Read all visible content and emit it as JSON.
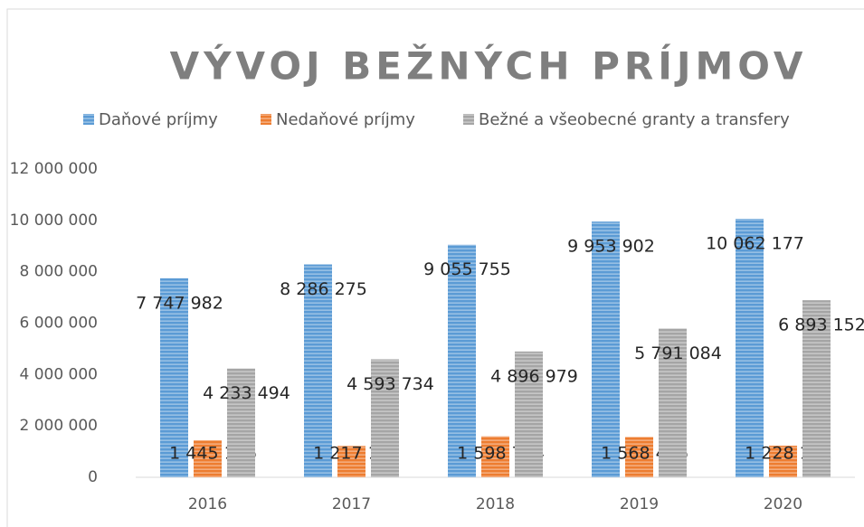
{
  "chart_data": {
    "type": "bar",
    "title": "VÝVOJ BEŽNÝCH PRÍJMOV",
    "categories": [
      "2016",
      "2017",
      "2018",
      "2019",
      "2020"
    ],
    "series": [
      {
        "name": "Daňové príjmy",
        "color": "#5b9bd5",
        "values": [
          7747982,
          8286275,
          9055755,
          9953902,
          10062177
        ],
        "value_labels": [
          "7 747 982",
          "8 286 275",
          "9 055 755",
          "9 953 902",
          "10 062 177"
        ]
      },
      {
        "name": "Nedaňové príjmy",
        "color": "#ed7d31",
        "values": [
          1445146,
          1217142,
          1598794,
          1568406,
          1228161
        ],
        "value_labels": [
          "1 445 146",
          "1 217 142",
          "1 598 794",
          "1 568 406",
          "1 228 161"
        ]
      },
      {
        "name": "Bežné a všeobecné granty a transfery",
        "color": "#a5a5a5",
        "values": [
          4233494,
          4593734,
          4896979,
          5791084,
          6893152
        ],
        "value_labels": [
          "4 233 494",
          "4 593 734",
          "4 896 979",
          "5 791 084",
          "6 893 152"
        ]
      }
    ],
    "ylim": [
      0,
      12000000
    ],
    "yticks": [
      {
        "value": 0,
        "label": "0"
      },
      {
        "value": 2000000,
        "label": "2 000 000"
      },
      {
        "value": 4000000,
        "label": "4 000 000"
      },
      {
        "value": 6000000,
        "label": "6 000 000"
      },
      {
        "value": 8000000,
        "label": "8 000 000"
      },
      {
        "value": 10000000,
        "label": "10 000 000"
      },
      {
        "value": 12000000,
        "label": "12 000 000"
      }
    ],
    "legend": "top",
    "grid": false
  }
}
